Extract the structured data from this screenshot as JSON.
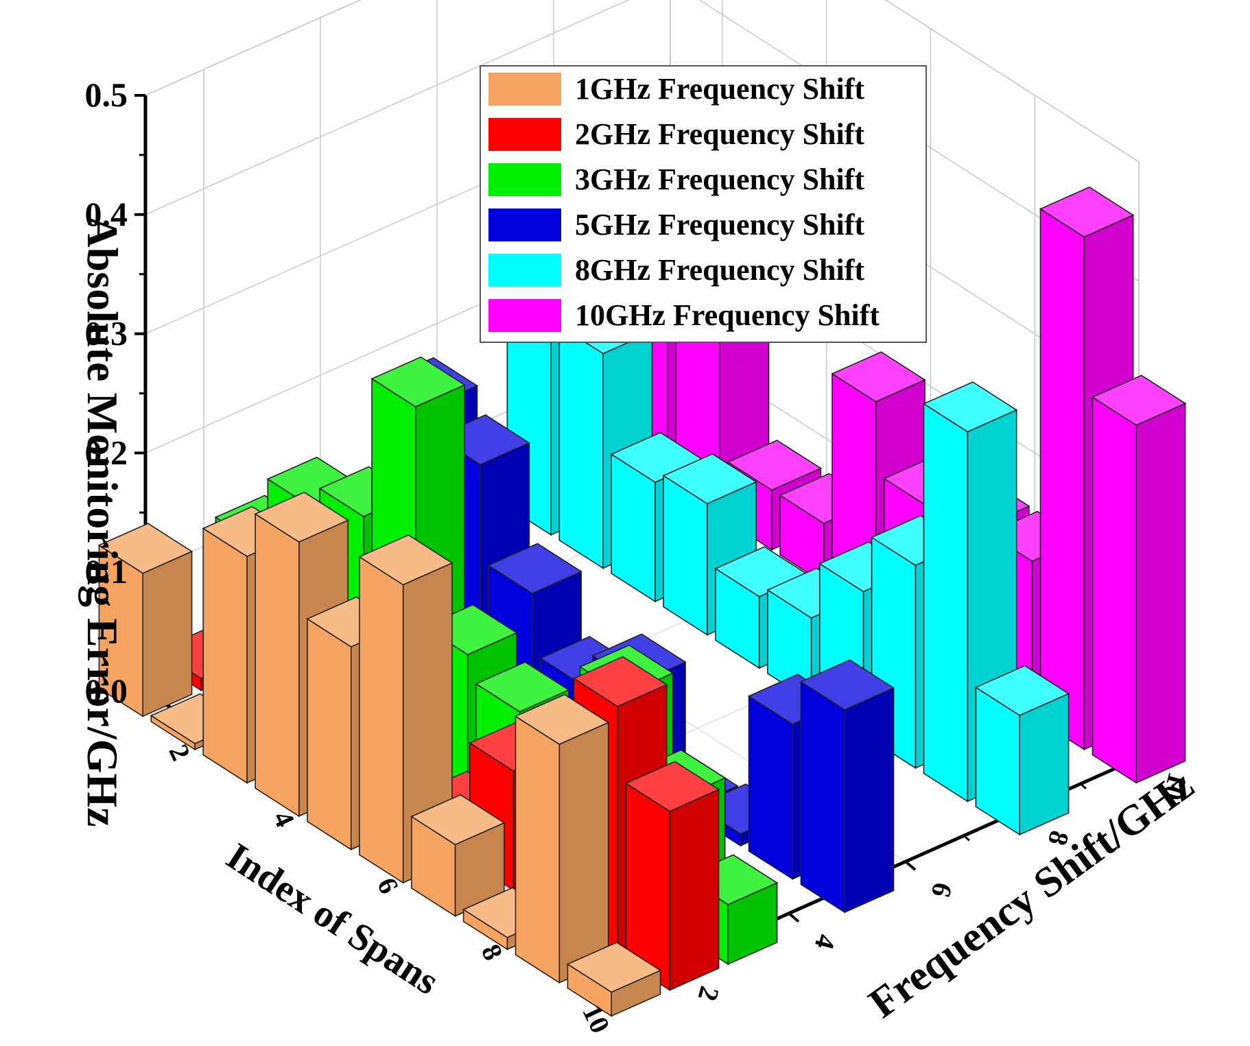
{
  "chart_data": {
    "type": "bar3d",
    "x_axis": {
      "label": "Index of Spans",
      "ticks": [
        2,
        4,
        6,
        8,
        10
      ],
      "range": [
        1,
        10
      ]
    },
    "y_axis": {
      "label": "Frequency Shift/GHz",
      "ticks": [
        2,
        4,
        6,
        8,
        10
      ],
      "range": [
        1,
        10
      ]
    },
    "z_axis": {
      "label": "Absolute Monitoring Error/GHz",
      "ticks": [
        "0.0",
        "0.1",
        "0.2",
        "0.3",
        "0.4",
        "0.5"
      ],
      "range": [
        0,
        0.5
      ]
    },
    "legend_position": "top-center",
    "grid": true,
    "spans": [
      1,
      2,
      3,
      4,
      5,
      6,
      7,
      8,
      9,
      10
    ],
    "series": [
      {
        "name": "1GHz Frequency Shift",
        "shift": 1,
        "color": "#f4a460",
        "values": [
          0.12,
          0.005,
          0.19,
          0.23,
          0.17,
          0.25,
          0.06,
          0.01,
          0.2,
          0.02
        ]
      },
      {
        "name": "2GHz Frequency Shift",
        "shift": 2,
        "color": "#ff0000",
        "values": [
          0.01,
          0.0,
          0.0,
          0.0,
          0.0,
          0.03,
          0.1,
          0.08,
          0.21,
          0.15
        ]
      },
      {
        "name": "3GHz Frequency Shift",
        "shift": 3,
        "color": "#00ee00",
        "values": [
          0.1,
          0.16,
          0.18,
          0.3,
          0.12,
          0.1,
          0.0,
          0.17,
          0.11,
          0.05
        ]
      },
      {
        "name": "5GHz Frequency Shift",
        "shift": 5,
        "color": "#0000dd",
        "values": [
          0.08,
          0.2,
          0.18,
          0.1,
          0.05,
          0.08,
          0.0,
          0.01,
          0.13,
          0.17
        ]
      },
      {
        "name": "8GHz Frequency Shift",
        "shift": 8,
        "color": "#00ffff",
        "values": [
          0.22,
          0.18,
          0.1,
          0.11,
          0.06,
          0.07,
          0.12,
          0.17,
          0.31,
          0.1
        ]
      },
      {
        "name": "10GHz Frequency Shift",
        "shift": 10,
        "color": "#ff00ff",
        "values": [
          0.2,
          0.16,
          0.05,
          0.05,
          0.18,
          0.12,
          0.13,
          0.13,
          0.43,
          0.3
        ]
      }
    ]
  }
}
